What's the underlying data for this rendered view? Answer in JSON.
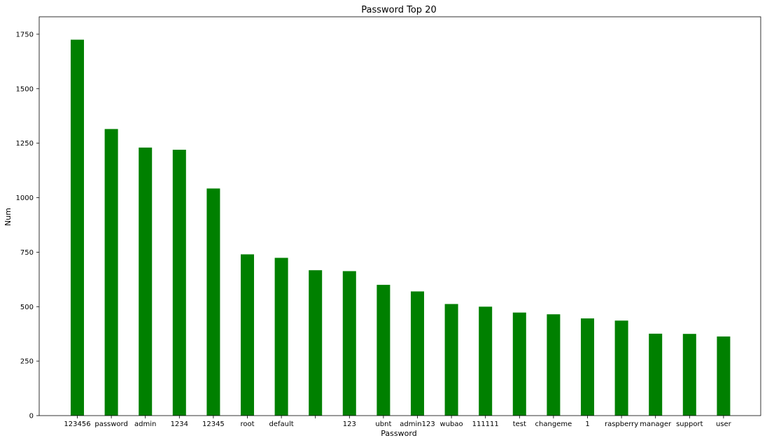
{
  "chart_data": {
    "type": "bar",
    "title": "Password Top 20",
    "xlabel": "Password",
    "ylabel": "Num",
    "categories": [
      "123456",
      "password",
      "admin",
      "1234",
      "12345",
      "root",
      "default",
      "",
      "123",
      "ubnt",
      "admin123",
      "wubao",
      "111111",
      "test",
      "changeme",
      "1",
      "raspberry",
      "manager",
      "support",
      "user"
    ],
    "values": [
      1725,
      1315,
      1230,
      1220,
      1042,
      740,
      724,
      667,
      663,
      600,
      570,
      512,
      500,
      473,
      465,
      446,
      436,
      376,
      375,
      363
    ],
    "ylim": [
      0,
      1830
    ],
    "yticks": [
      0,
      250,
      500,
      750,
      1000,
      1250,
      1500,
      1750
    ],
    "bar_color": "#008000",
    "grid": false,
    "legend": "none"
  }
}
